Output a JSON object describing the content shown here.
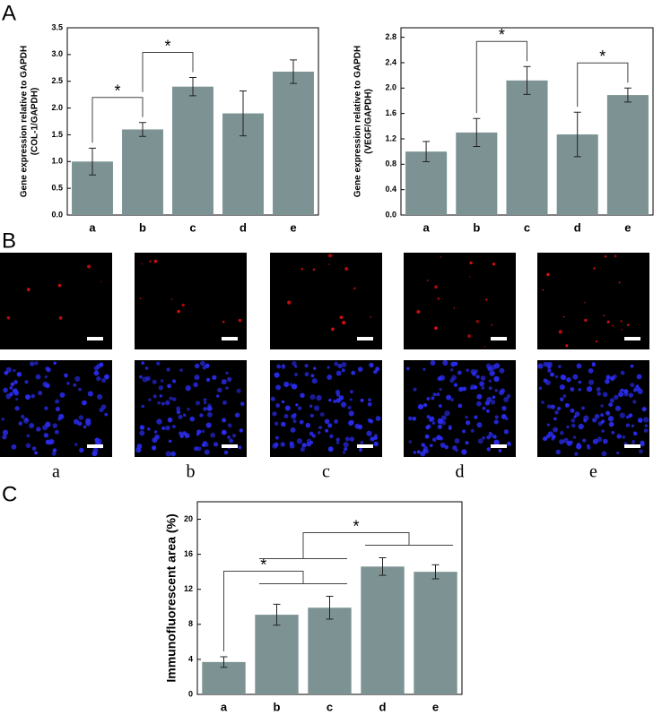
{
  "panels": [
    "A",
    "B",
    "C"
  ],
  "image_labels": [
    "a",
    "b",
    "c",
    "d",
    "e"
  ],
  "chart_data": [
    {
      "type": "bar",
      "ylabel": [
        "Gene expression relative to GAPDH",
        "(COL-1/GAPDH)"
      ],
      "categories": [
        "a",
        "b",
        "c",
        "d",
        "e"
      ],
      "values": [
        1.0,
        1.6,
        2.4,
        1.9,
        2.68
      ],
      "errors": [
        0.25,
        0.13,
        0.17,
        0.42,
        0.22
      ],
      "color": "#7d9393",
      "ylim": [
        0,
        3.5
      ],
      "yticks": [
        {
          "value": 0,
          "label": "0.0"
        },
        0.5,
        {
          "value": 1,
          "label": "1.0"
        },
        1.5,
        {
          "value": 2,
          "label": "2.0"
        },
        2.5,
        {
          "value": 3,
          "label": "3.0"
        },
        3.5
      ],
      "annotations": [
        {
          "text": "*",
          "between": [
            [
              "a"
            ],
            [
              "b"
            ]
          ]
        },
        {
          "text": "*",
          "between": [
            [
              "b"
            ],
            [
              "c"
            ]
          ]
        }
      ]
    },
    {
      "type": "bar",
      "ylabel": [
        "Gene expression relative to GAPDH",
        "(VEGF/GAPDH)"
      ],
      "categories": [
        "a",
        "b",
        "c",
        "d",
        "e"
      ],
      "values": [
        1.0,
        1.3,
        2.12,
        1.27,
        1.89
      ],
      "errors": [
        0.16,
        0.22,
        0.22,
        0.35,
        0.11
      ],
      "color": "#7d9393",
      "ylim": [
        0,
        2.95
      ],
      "yticks": [
        {
          "value": 0,
          "label": "0.0"
        },
        0.4,
        0.8,
        1.2,
        1.6,
        {
          "value": 2,
          "label": "2.0"
        },
        2.4,
        2.8
      ],
      "annotations": [
        {
          "text": "*",
          "between": [
            [
              "b"
            ],
            [
              "c"
            ]
          ]
        },
        {
          "text": "*",
          "between": [
            [
              "d"
            ],
            [
              "e"
            ]
          ]
        }
      ]
    },
    {
      "type": "bar",
      "ylabel": [
        "Immunofluorescent area (%)"
      ],
      "categories": [
        "a",
        "b",
        "c",
        "d",
        "e"
      ],
      "values": [
        3.7,
        9.1,
        9.9,
        14.6,
        14.0
      ],
      "errors": [
        0.6,
        1.2,
        1.3,
        1.0,
        0.8
      ],
      "color": "#7d9393",
      "ylim": [
        0,
        22
      ],
      "yticks": [
        0,
        4,
        8,
        12,
        16,
        20
      ],
      "annotations": [
        {
          "text": "*",
          "between": [
            [
              "a"
            ],
            [
              "b",
              "c"
            ]
          ]
        },
        {
          "text": "*",
          "between": [
            [
              "b",
              "c"
            ],
            [
              "d",
              "e"
            ]
          ]
        }
      ]
    }
  ]
}
